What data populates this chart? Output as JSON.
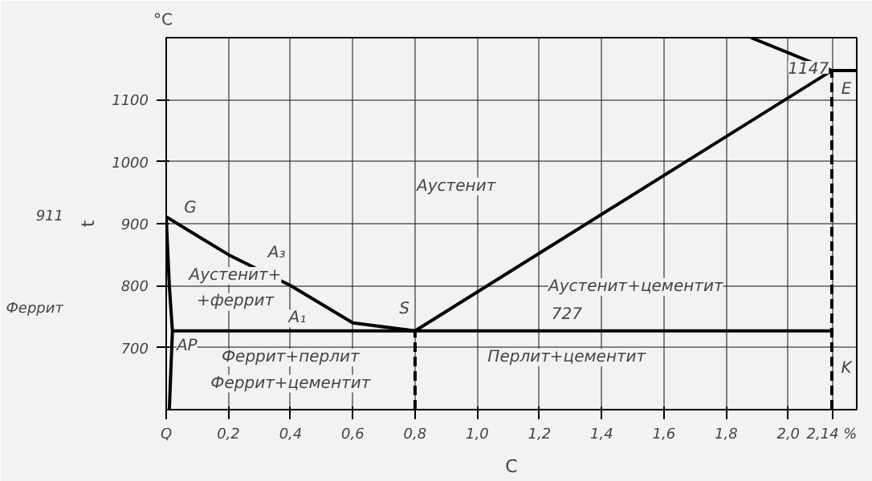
{
  "chart_data": {
    "type": "line",
    "xlabel": "C",
    "ylabel": "t",
    "xlim": [
      0,
      2.22
    ],
    "ylim": [
      600,
      1200
    ],
    "xticks": [
      {
        "value": 0,
        "label": "Q"
      },
      {
        "value": 0.2,
        "label": "0,2"
      },
      {
        "value": 0.4,
        "label": "0,4"
      },
      {
        "value": 0.6,
        "label": "0,6"
      },
      {
        "value": 0.8,
        "label": "0,8"
      },
      {
        "value": 1.0,
        "label": "1,0"
      },
      {
        "value": 1.2,
        "label": "1,2"
      },
      {
        "value": 1.4,
        "label": "1,4"
      },
      {
        "value": 1.6,
        "label": "1,6"
      },
      {
        "value": 1.8,
        "label": "1,8"
      },
      {
        "value": 2.0,
        "label": "2,0"
      },
      {
        "value": 2.14,
        "label": "2,14 %"
      }
    ],
    "yticks": [
      700,
      800,
      900,
      1000,
      1100
    ],
    "grid": true,
    "marker": "none",
    "series": [
      {
        "color": "#000000",
        "x": [
          0,
          0.2,
          0.4,
          0.6,
          0.8
        ],
        "values": [
          911,
          850,
          800,
          740,
          727
        ]
      },
      {
        "color": "#000000",
        "x": [
          0.8,
          2.14
        ],
        "values": [
          727,
          1147
        ]
      },
      {
        "color": "#000000",
        "x": [
          0.02,
          2.14
        ],
        "values": [
          727,
          727
        ]
      },
      {
        "color": "#000000",
        "x": [
          0,
          0.01,
          0.02,
          0.01
        ],
        "values": [
          911,
          800,
          727,
          600
        ]
      },
      {
        "color": "#000000",
        "x": [
          1.88,
          2.14,
          2.22
        ],
        "values": [
          1200,
          1147,
          1147
        ]
      },
      {
        "color": "#000000",
        "x": [
          0.8,
          0.8
        ],
        "values": [
          600,
          727
        ],
        "line_style": "dashed"
      },
      {
        "color": "#000000",
        "x": [
          2.14,
          2.14
        ],
        "values": [
          600,
          1147
        ],
        "line_style": "dashed"
      }
    ],
    "annotations": [
      "°C",
      "Феррит",
      "Аустенит",
      "Аустенит+цементит",
      "Аустенит+",
      "+феррит",
      "Феррит+перлит",
      "Феррит+цементит",
      "Перлит+цементит",
      "727",
      "1147",
      "G",
      "A₃",
      "A₁",
      "S",
      "AP",
      "E",
      "K",
      "911"
    ]
  }
}
